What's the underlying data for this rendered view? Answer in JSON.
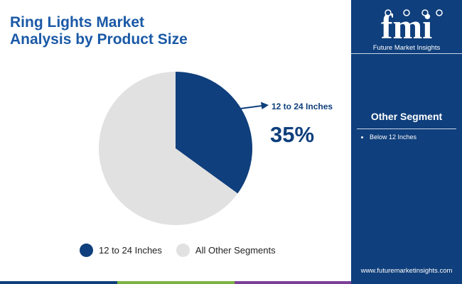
{
  "title": {
    "line1": "Ring Lights Market",
    "line2": "Analysis by Product Size"
  },
  "chart_data": {
    "type": "pie",
    "categories": [
      "12 to 24 Inches",
      "All Other Segments"
    ],
    "values": [
      35,
      65
    ],
    "unit": "%",
    "colors": [
      "#0f3f7c",
      "#e1e1e1"
    ],
    "legend_position": "bottom",
    "callout": {
      "label": "12 to 24 Inches",
      "value": "35%"
    }
  },
  "legend": [
    {
      "label": "12 to 24 Inches",
      "color": "#0f3f7c"
    },
    {
      "label": "All Other Segments",
      "color": "#e1e1e1"
    }
  ],
  "sidebar": {
    "logo_text": "fmi",
    "logo_subtitle": "Future Market Insights",
    "other_segment_title": "Other Segment",
    "other_segments": [
      "Below 12 Inches"
    ],
    "url": "www.futuremarketinsights.com",
    "background": "#0f3f7c"
  },
  "bottom_bar_colors": [
    "#0f3f7c",
    "#7cb342",
    "#7b3f98",
    "#0f3f7c"
  ]
}
